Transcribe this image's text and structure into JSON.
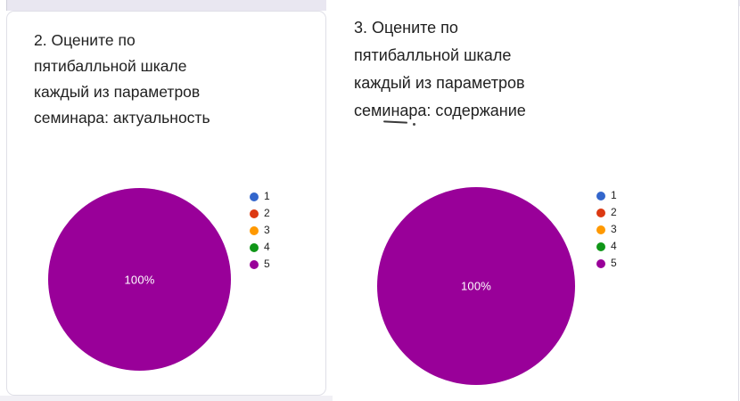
{
  "colors": {
    "page_background": "#FFFFFF",
    "gap_strip": "#E9E7F1",
    "bottom_strip": "#F1F0F5",
    "card_background": "#FFFFFF",
    "card_border": "#DFDFE7",
    "title_text": "#212121",
    "pie_label_text": "#FFFFFF",
    "palette": [
      "#3366CC",
      "#DC3912",
      "#FF9900",
      "#109618",
      "#990099"
    ]
  },
  "cards": [
    {
      "title": "2. Оцените по пятибалльной шкале каждый из параметров семинара: актуальность",
      "title_lines": [
        "2. Оцените по",
        "пятибалльной шкале",
        "каждый из параметров",
        "семинара: актуальность"
      ],
      "pie_label": "100%",
      "legend": [
        "1",
        "2",
        "3",
        "4",
        "5"
      ]
    },
    {
      "title": "3. Оцените по пятибалльной шкале каждый из параметров семинара: содержание",
      "title_lines": [
        "3. Оцените по",
        "пятибалльной шкале",
        "каждый из параметров",
        "семинара: содержание"
      ],
      "pie_label": "100%",
      "legend": [
        "1",
        "2",
        "3",
        "4",
        "5"
      ]
    }
  ],
  "chart_data": [
    {
      "type": "pie",
      "title": "2. Оцените по пятибалльной шкале каждый из параметров семинара: актуальность",
      "categories": [
        "1",
        "2",
        "3",
        "4",
        "5"
      ],
      "values": [
        0,
        0,
        0,
        0,
        100
      ],
      "unit": "%",
      "data_labels": [
        "100%"
      ],
      "colors": [
        "#3366CC",
        "#DC3912",
        "#FF9900",
        "#109618",
        "#990099"
      ],
      "legend_position": "right",
      "dominant_slice": {
        "category": "5",
        "percent": 100,
        "color": "#990099"
      }
    },
    {
      "type": "pie",
      "title": "3. Оцените по пятибалльной шкале каждый из параметров семинара: содержание",
      "categories": [
        "1",
        "2",
        "3",
        "4",
        "5"
      ],
      "values": [
        0,
        0,
        0,
        0,
        100
      ],
      "unit": "%",
      "data_labels": [
        "100%"
      ],
      "colors": [
        "#3366CC",
        "#DC3912",
        "#FF9900",
        "#109618",
        "#990099"
      ],
      "legend_position": "right",
      "dominant_slice": {
        "category": "5",
        "percent": 100,
        "color": "#990099"
      }
    }
  ]
}
